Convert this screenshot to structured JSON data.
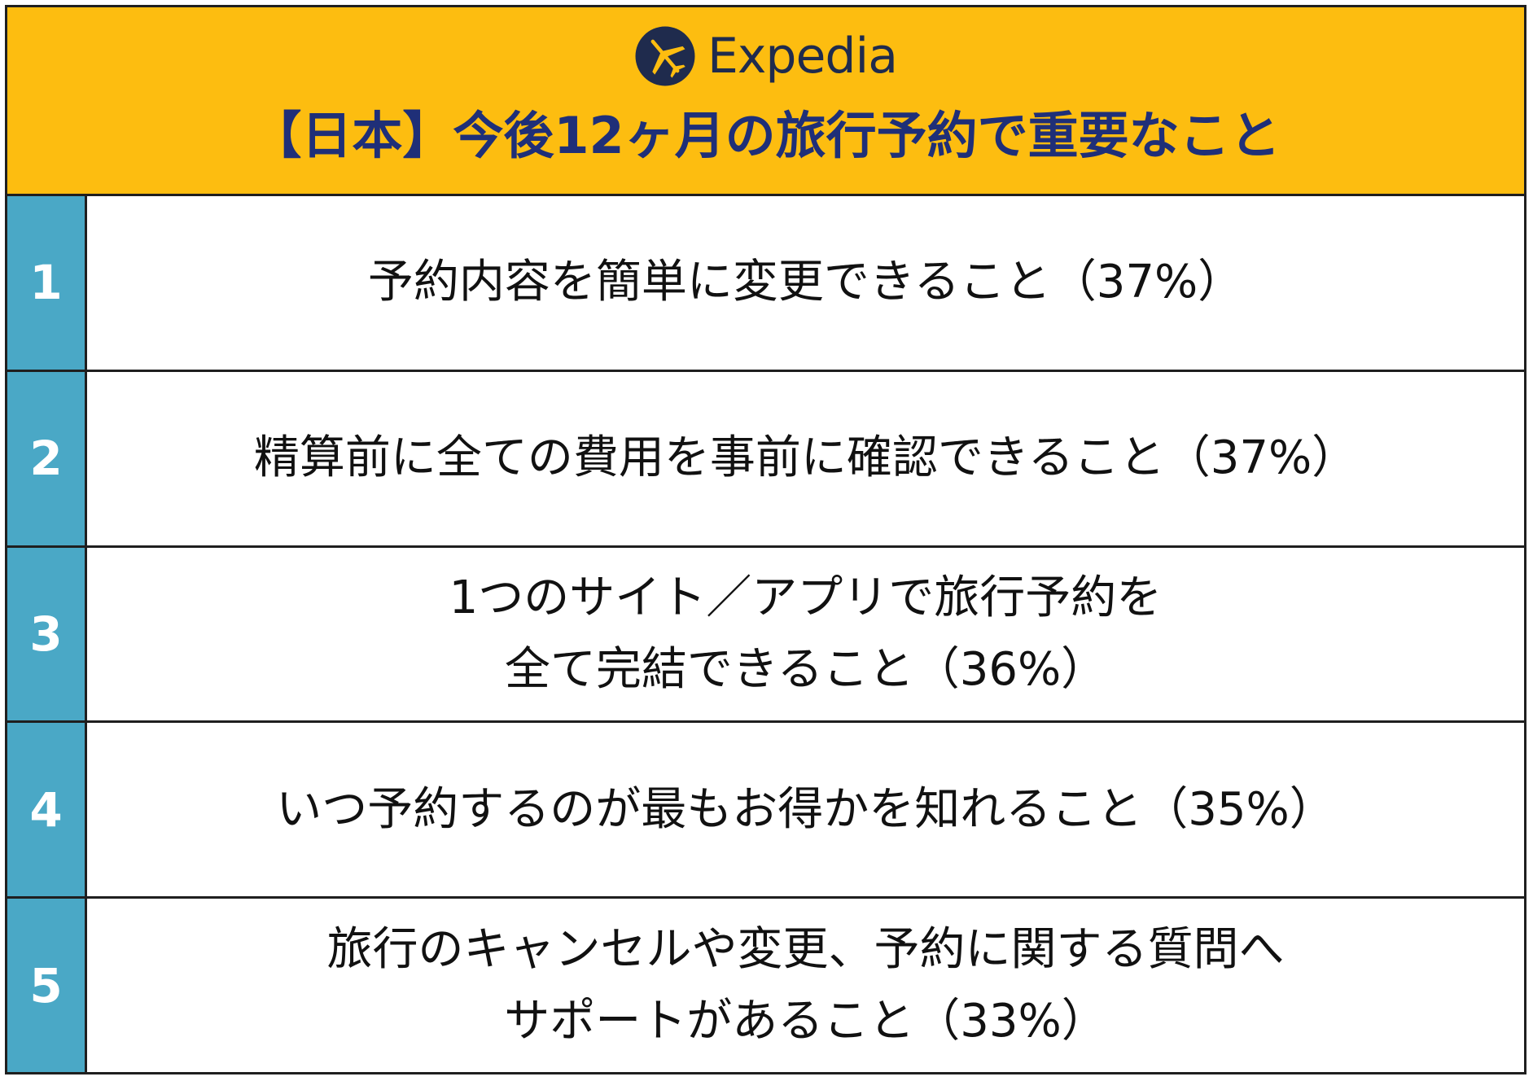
{
  "brand": {
    "name": "Expedia",
    "accent_color": "#fdbd10",
    "logo_icon": "airplane-icon",
    "logo_color": "#1f2b4d"
  },
  "title": "【日本】今後12ヶ月の旅行予約で重要なこと",
  "colors": {
    "title": "#1f2f78",
    "rank_background": "#4aa8c6",
    "border": "#1f1f1f"
  },
  "items": [
    {
      "rank": "1",
      "lines": [
        "予約内容を簡単に変更できること（37%）"
      ]
    },
    {
      "rank": "2",
      "lines": [
        "精算前に全ての費用を事前に確認できること（37%）"
      ]
    },
    {
      "rank": "3",
      "lines": [
        "1つのサイト／アプリで旅行予約を",
        "全て完結できること（36%）"
      ]
    },
    {
      "rank": "4",
      "lines": [
        "いつ予約するのが最もお得かを知れること（35%）"
      ]
    },
    {
      "rank": "5",
      "lines": [
        "旅行のキャンセルや変更、予約に関する質問へ",
        "サポートがあること（33%）"
      ]
    }
  ]
}
